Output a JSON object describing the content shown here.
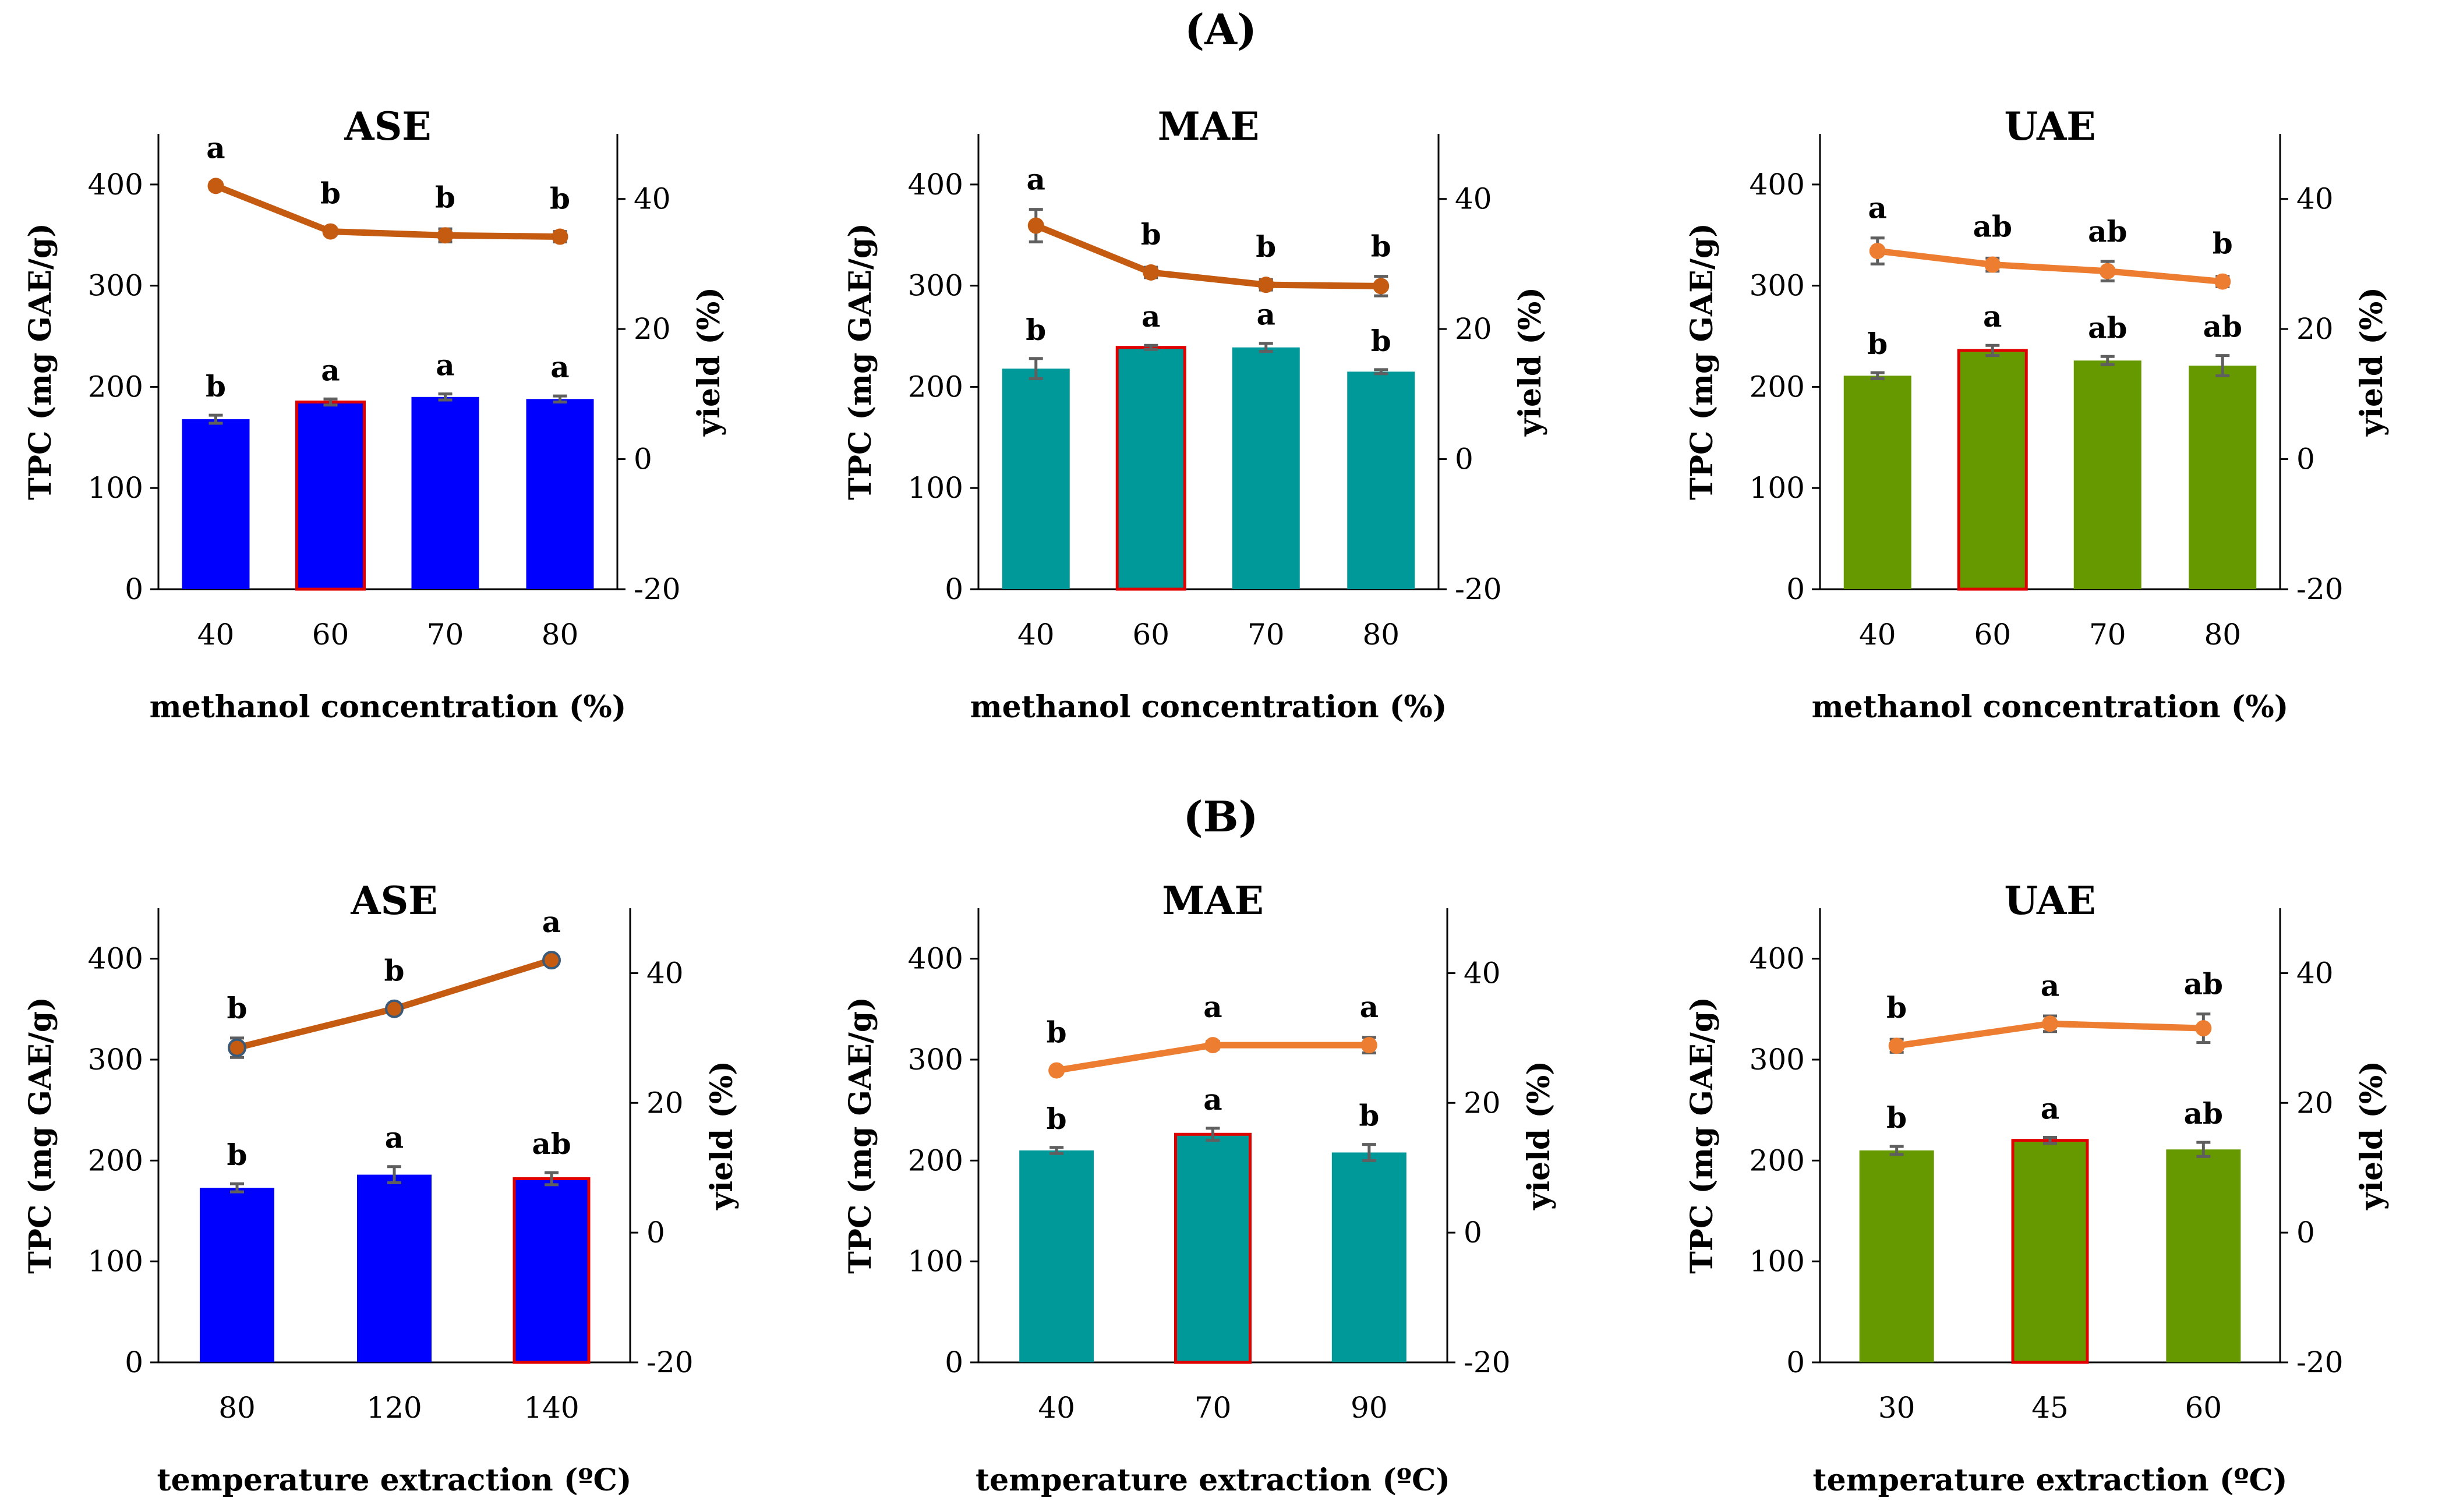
{
  "figure": {
    "panel_labels": {
      "A": "(A)",
      "B": "(B)"
    }
  },
  "chart_data": [
    {
      "type": "bar",
      "row": "A",
      "title": "ASE",
      "bar_color": "#0000ff",
      "line_color": "#c55a11",
      "marker_edge": "",
      "categories": [
        "40",
        "60",
        "70",
        "80"
      ],
      "highlight_index": 1,
      "xlabel": "methanol concentration (%)",
      "ylabel": "TPC (mg GAE/g)",
      "ylim": [
        0,
        450
      ],
      "yticks": [
        0,
        100,
        200,
        300,
        400
      ],
      "y2label": "yield (%)",
      "y2lim": [
        -20,
        50
      ],
      "y2ticks": [
        -20,
        0,
        20,
        40
      ],
      "bars": {
        "name": "TPC",
        "values": [
          168,
          185,
          190,
          188
        ],
        "errors": [
          4,
          3,
          3,
          3
        ],
        "labels": [
          "b",
          "a",
          "a",
          "a"
        ]
      },
      "line": {
        "name": "yield",
        "values": [
          42,
          35,
          34.4,
          34.2
        ],
        "errors": [
          0.5,
          0.5,
          1,
          0.8
        ],
        "labels": [
          "a",
          "b",
          "b",
          "b"
        ]
      }
    },
    {
      "type": "bar",
      "row": "A",
      "title": "MAE",
      "bar_color": "#009999",
      "line_color": "#c55a11",
      "marker_edge": "",
      "categories": [
        "40",
        "60",
        "70",
        "80"
      ],
      "highlight_index": 1,
      "xlabel": "methanol concentration (%)",
      "ylabel": "TPC (mg GAE/g)",
      "ylim": [
        0,
        450
      ],
      "yticks": [
        0,
        100,
        200,
        300,
        400
      ],
      "y2label": "yield (%)",
      "y2lim": [
        -20,
        50
      ],
      "y2ticks": [
        -20,
        0,
        20,
        40
      ],
      "bars": {
        "name": "TPC",
        "values": [
          218,
          239,
          239,
          215
        ],
        "errors": [
          10,
          2,
          4,
          2
        ],
        "labels": [
          "b",
          "a",
          "a",
          "b"
        ]
      },
      "line": {
        "name": "yield",
        "values": [
          35.9,
          28.7,
          26.8,
          26.6
        ],
        "errors": [
          2.5,
          0.8,
          0.8,
          1.5
        ],
        "labels": [
          "a",
          "b",
          "b",
          "b"
        ]
      }
    },
    {
      "type": "bar",
      "row": "A",
      "title": "UAE",
      "bar_color": "#669900",
      "line_color": "#ed7d31",
      "marker_edge": "",
      "categories": [
        "40",
        "60",
        "70",
        "80"
      ],
      "highlight_index": 1,
      "xlabel": "methanol concentration (%)",
      "ylabel": "TPC (mg GAE/g)",
      "ylim": [
        0,
        450
      ],
      "yticks": [
        0,
        100,
        200,
        300,
        400
      ],
      "y2label": "yield (%)",
      "y2lim": [
        -20,
        50
      ],
      "y2ticks": [
        -20,
        0,
        20,
        40
      ],
      "bars": {
        "name": "TPC",
        "values": [
          211,
          236,
          226,
          221
        ],
        "errors": [
          3,
          5,
          4,
          10
        ],
        "labels": [
          "b",
          "a",
          "ab",
          "ab"
        ]
      },
      "line": {
        "name": "yield",
        "values": [
          32,
          29.9,
          28.9,
          27.3
        ],
        "errors": [
          2,
          1,
          1.5,
          0.8
        ],
        "labels": [
          "a",
          "ab",
          "ab",
          "b"
        ]
      }
    },
    {
      "type": "bar",
      "row": "B",
      "title": "ASE",
      "bar_color": "#0000ff",
      "line_color": "#c55a11",
      "marker_edge": "#3a5a7a",
      "categories": [
        "80",
        "120",
        "140"
      ],
      "highlight_index": 2,
      "xlabel": "temperature extraction (ºC)",
      "ylabel": "TPC (mg GAE/g)",
      "ylim": [
        0,
        450
      ],
      "yticks": [
        0,
        100,
        200,
        300,
        400
      ],
      "y2label": "yield (%)",
      "y2lim": [
        -20,
        50
      ],
      "y2ticks": [
        -20,
        0,
        20,
        40
      ],
      "bars": {
        "name": "TPC",
        "values": [
          173,
          186,
          182
        ],
        "errors": [
          4,
          8,
          6
        ],
        "labels": [
          "b",
          "a",
          "ab"
        ]
      },
      "line": {
        "name": "yield",
        "values": [
          28.5,
          34.5,
          42
        ],
        "errors": [
          1.5,
          0.5,
          0.5
        ],
        "labels": [
          "b",
          "b",
          "a"
        ]
      }
    },
    {
      "type": "bar",
      "row": "B",
      "title": "MAE",
      "bar_color": "#009999",
      "line_color": "#ed7d31",
      "marker_edge": "",
      "categories": [
        "40",
        "70",
        "90"
      ],
      "highlight_index": 1,
      "xlabel": "temperature extraction (ºC)",
      "ylabel": "TPC (mg GAE/g)",
      "ylim": [
        0,
        450
      ],
      "yticks": [
        0,
        100,
        200,
        300,
        400
      ],
      "y2label": "yield (%)",
      "y2lim": [
        -20,
        50
      ],
      "y2ticks": [
        -20,
        0,
        20,
        40
      ],
      "bars": {
        "name": "TPC",
        "values": [
          210,
          226,
          208
        ],
        "errors": [
          3,
          6,
          8
        ],
        "labels": [
          "b",
          "a",
          "b"
        ]
      },
      "line": {
        "name": "yield",
        "values": [
          25,
          28.9,
          28.9
        ],
        "errors": [
          0.4,
          0.6,
          1.2
        ],
        "labels": [
          "b",
          "a",
          "a"
        ]
      }
    },
    {
      "type": "bar",
      "row": "B",
      "title": "UAE",
      "bar_color": "#669900",
      "line_color": "#ed7d31",
      "marker_edge": "",
      "categories": [
        "30",
        "45",
        "60"
      ],
      "highlight_index": 1,
      "xlabel": "temperature extraction (ºC)",
      "ylabel": "TPC (mg GAE/g)",
      "ylim": [
        0,
        450
      ],
      "yticks": [
        0,
        100,
        200,
        300,
        400
      ],
      "y2label": "yield (%)",
      "y2lim": [
        -20,
        50
      ],
      "y2ticks": [
        -20,
        0,
        20,
        40
      ],
      "bars": {
        "name": "TPC",
        "values": [
          210,
          220,
          211
        ],
        "errors": [
          4,
          3,
          7
        ],
        "labels": [
          "b",
          "a",
          "ab"
        ]
      },
      "line": {
        "name": "yield",
        "values": [
          28.8,
          32.2,
          31.5
        ],
        "errors": [
          1,
          1.2,
          2.2
        ],
        "labels": [
          "b",
          "a",
          "ab"
        ]
      }
    }
  ]
}
